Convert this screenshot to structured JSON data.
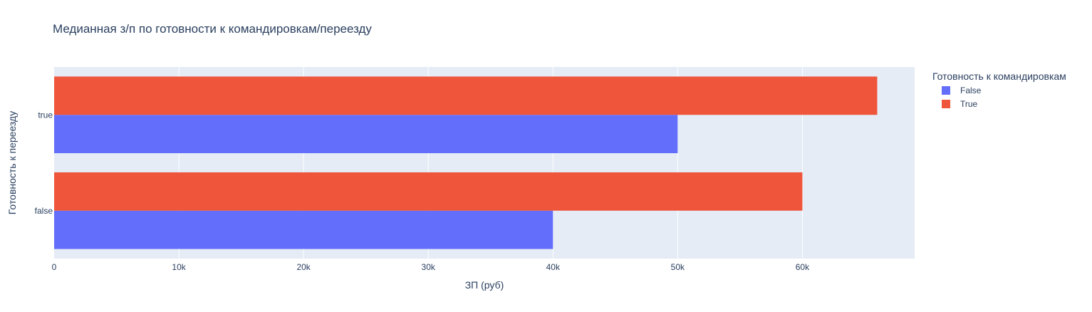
{
  "chart_data": {
    "type": "bar",
    "orientation": "horizontal",
    "title": "Медианная з/п по готовности к командировкам/переезду",
    "xlabel": "ЗП (руб)",
    "ylabel": "Готовность к переезду",
    "categories": [
      "false",
      "true"
    ],
    "xlim": [
      0,
      69000
    ],
    "x_ticks": [
      {
        "value": 0,
        "label": "0"
      },
      {
        "value": 10000,
        "label": "10k"
      },
      {
        "value": 20000,
        "label": "20k"
      },
      {
        "value": 30000,
        "label": "30k"
      },
      {
        "value": 40000,
        "label": "40k"
      },
      {
        "value": 50000,
        "label": "50k"
      },
      {
        "value": 60000,
        "label": "60k"
      }
    ],
    "grid": true,
    "legend": {
      "title": "Готовность к командировкам",
      "placement": "top-right"
    },
    "series": [
      {
        "name": "False",
        "color": "#636efa",
        "values": [
          40000,
          50000
        ]
      },
      {
        "name": "True",
        "color": "#ef553b",
        "values": [
          60000,
          66000
        ]
      }
    ],
    "plot_background": "#e5ecf6"
  }
}
